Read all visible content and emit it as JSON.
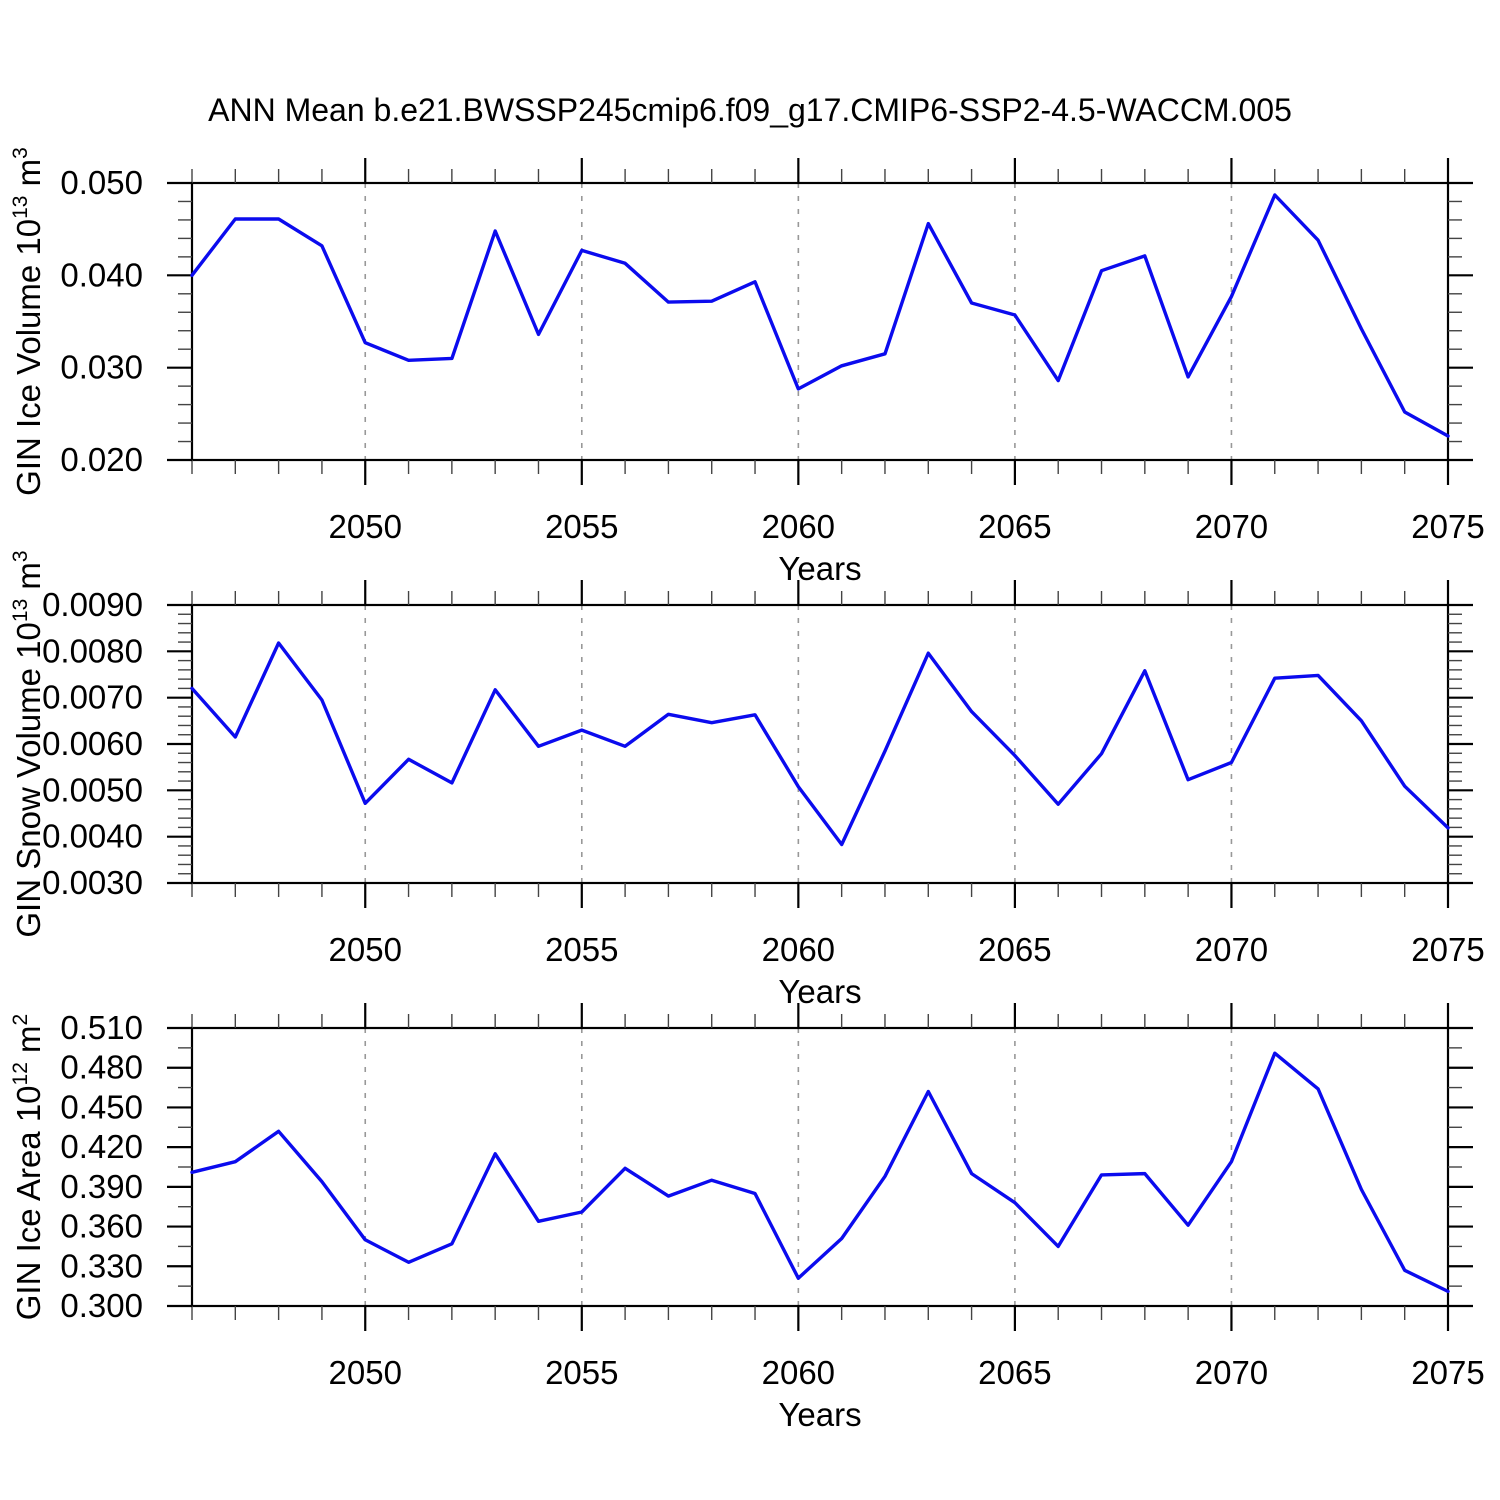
{
  "title": "ANN Mean b.e21.BWSSP245cmip6.f09_g17.CMIP6-SSP2-4.5-WACCM.005",
  "line_color": "#0b0bee",
  "axis_color": "#000000",
  "gridline_color": "#989898",
  "years": [
    2046,
    2047,
    2048,
    2049,
    2050,
    2051,
    2052,
    2053,
    2054,
    2055,
    2056,
    2057,
    2058,
    2059,
    2060,
    2061,
    2062,
    2063,
    2064,
    2065,
    2066,
    2067,
    2068,
    2069,
    2070,
    2071,
    2072,
    2073,
    2074,
    2075
  ],
  "chart_data": [
    {
      "type": "line",
      "name": "gin-ice-volume",
      "ylabel": "GIN Ice Volume 10¹³ m³",
      "ylabel_parts": [
        {
          "t": "GIN Ice Volume 10"
        },
        {
          "t": "13",
          "sup": true
        },
        {
          "t": " m"
        },
        {
          "t": "3",
          "sup": true
        }
      ],
      "xlabel": "Years",
      "ylim": [
        0.02,
        0.05
      ],
      "ytick_major": 0.01,
      "ytick_minor": 0.002,
      "ytick_decimals": 3,
      "xlim": [
        2046,
        2075
      ],
      "xticks_labeled": [
        2050,
        2055,
        2060,
        2065,
        2070,
        2075
      ],
      "gridlines_x": [
        2050,
        2055,
        2060,
        2065,
        2070
      ],
      "values": [
        0.04,
        0.0461,
        0.0461,
        0.0432,
        0.0327,
        0.0308,
        0.031,
        0.0448,
        0.0336,
        0.0427,
        0.0413,
        0.0371,
        0.0372,
        0.0393,
        0.0277,
        0.0302,
        0.0315,
        0.0456,
        0.037,
        0.0357,
        0.0286,
        0.0405,
        0.0421,
        0.029,
        0.0377,
        0.0487,
        0.0438,
        0.0342,
        0.0252,
        0.0226
      ]
    },
    {
      "type": "line",
      "name": "gin-snow-volume",
      "ylabel": "GIN Snow Volume 10¹³ m³",
      "ylabel_parts": [
        {
          "t": "GIN Snow Volume 10"
        },
        {
          "t": "13",
          "sup": true
        },
        {
          "t": " m"
        },
        {
          "t": "3",
          "sup": true
        }
      ],
      "xlabel": "Years",
      "ylim": [
        0.003,
        0.009
      ],
      "ytick_major": 0.001,
      "ytick_minor": 0.0002,
      "ytick_decimals": 4,
      "xlim": [
        2046,
        2075
      ],
      "xticks_labeled": [
        2050,
        2055,
        2060,
        2065,
        2070,
        2075
      ],
      "gridlines_x": [
        2050,
        2055,
        2060,
        2065,
        2070
      ],
      "values": [
        0.0072,
        0.00615,
        0.00818,
        0.00695,
        0.00472,
        0.00567,
        0.00516,
        0.00717,
        0.00595,
        0.0063,
        0.00595,
        0.00664,
        0.00646,
        0.00663,
        0.00508,
        0.00383,
        0.00585,
        0.00796,
        0.0067,
        0.00575,
        0.0047,
        0.00579,
        0.00758,
        0.00523,
        0.0056,
        0.00742,
        0.00748,
        0.0065,
        0.00509,
        0.00419
      ]
    },
    {
      "type": "line",
      "name": "gin-ice-area",
      "ylabel": "GIN Ice Area 10¹² m²",
      "ylabel_parts": [
        {
          "t": "GIN Ice Area 10"
        },
        {
          "t": "12",
          "sup": true
        },
        {
          "t": " m"
        },
        {
          "t": "2",
          "sup": true
        }
      ],
      "xlabel": "Years",
      "ylim": [
        0.3,
        0.51
      ],
      "ytick_major": 0.03,
      "ytick_minor": 0.015,
      "ytick_decimals": 3,
      "xlim": [
        2046,
        2075
      ],
      "xticks_labeled": [
        2050,
        2055,
        2060,
        2065,
        2070,
        2075
      ],
      "gridlines_x": [
        2050,
        2055,
        2060,
        2065,
        2070
      ],
      "values": [
        0.401,
        0.409,
        0.432,
        0.394,
        0.35,
        0.333,
        0.347,
        0.415,
        0.364,
        0.371,
        0.404,
        0.383,
        0.395,
        0.385,
        0.321,
        0.351,
        0.398,
        0.462,
        0.4,
        0.378,
        0.345,
        0.399,
        0.4,
        0.361,
        0.409,
        0.491,
        0.464,
        0.388,
        0.327,
        0.311
      ]
    }
  ]
}
